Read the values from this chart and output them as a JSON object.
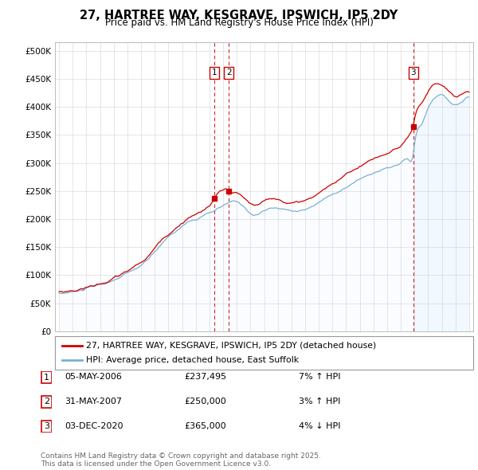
{
  "title": "27, HARTREE WAY, KESGRAVE, IPSWICH, IP5 2DY",
  "subtitle": "Price paid vs. HM Land Registry's House Price Index (HPI)",
  "yticks": [
    0,
    50000,
    100000,
    150000,
    200000,
    250000,
    300000,
    350000,
    400000,
    450000,
    500000
  ],
  "ytick_labels": [
    "£0",
    "£50K",
    "£100K",
    "£150K",
    "£200K",
    "£250K",
    "£300K",
    "£350K",
    "£400K",
    "£450K",
    "£500K"
  ],
  "xlim_start": 1994.7,
  "xlim_end": 2025.3,
  "ylim_min": 0,
  "ylim_max": 515000,
  "line1_color": "#cc0000",
  "line2_color": "#7ab0d4",
  "line2_fill_color": "#ddeeff",
  "legend1_label": "27, HARTREE WAY, KESGRAVE, IPSWICH, IP5 2DY (detached house)",
  "legend2_label": "HPI: Average price, detached house, East Suffolk",
  "transactions": [
    {
      "num": 1,
      "date": "05-MAY-2006",
      "price": 237495,
      "change": "7% ↑ HPI",
      "x": 2006.37
    },
    {
      "num": 2,
      "date": "31-MAY-2007",
      "price": 250000,
      "change": "3% ↑ HPI",
      "x": 2007.42
    },
    {
      "num": 3,
      "date": "03-DEC-2020",
      "price": 365000,
      "change": "4% ↓ HPI",
      "x": 2020.92
    }
  ],
  "footnote": "Contains HM Land Registry data © Crown copyright and database right 2025.\nThis data is licensed under the Open Government Licence v3.0.",
  "background_color": "#ffffff",
  "grid_color": "#cccccc",
  "fill_start_x": 2020.92
}
